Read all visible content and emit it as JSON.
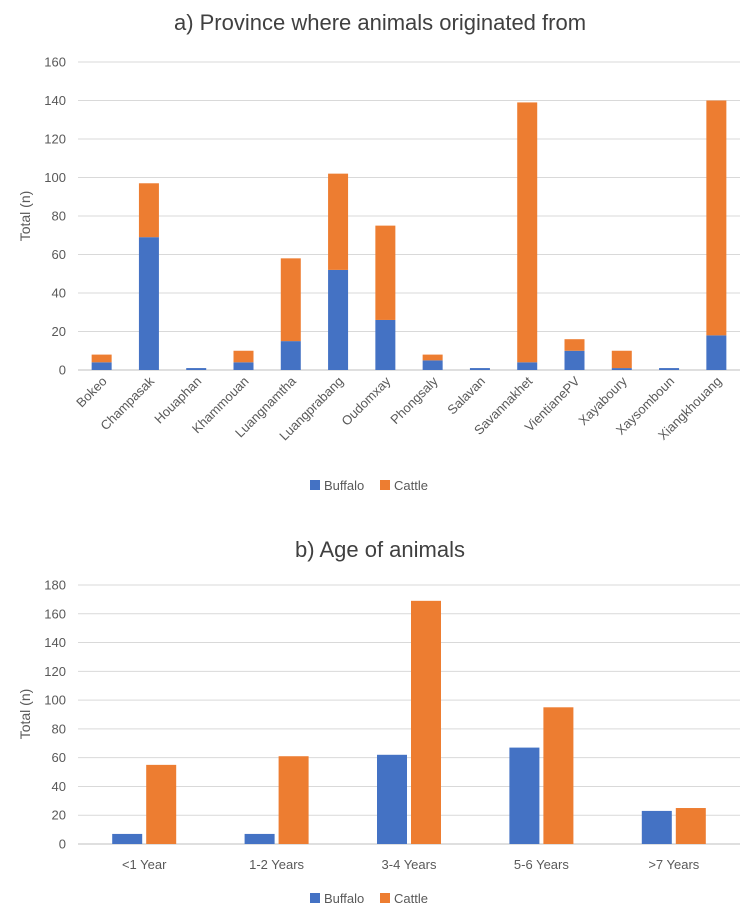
{
  "chart_data": [
    {
      "type": "bar",
      "stacked": true,
      "title": "a) Province where animals originated from",
      "ylabel": "Total (n)",
      "xlabel": "",
      "ylim": [
        0,
        160
      ],
      "yticks": [
        "0",
        "20",
        "40",
        "60",
        "80",
        "100",
        "120",
        "140",
        "160"
      ],
      "grid": true,
      "legend_position": "bottom",
      "categories": [
        "Bokeo",
        "Champasak",
        "Houaphan",
        "Khammouan",
        "Luangnamtha",
        "Luangprabang",
        "Oudomxay",
        "Phongsaly",
        "Salavan",
        "Savannakhet",
        "VientianePV",
        "Xayaboury",
        "Xaysomboun",
        "Xiangkhouang"
      ],
      "series": [
        {
          "name": "Buffalo",
          "color": "#4472c4",
          "values": [
            4,
            69,
            1,
            4,
            15,
            52,
            26,
            5,
            1,
            4,
            10,
            1,
            1,
            18
          ]
        },
        {
          "name": "Cattle",
          "color": "#ed7d31",
          "values": [
            4,
            28,
            0,
            6,
            43,
            50,
            49,
            3,
            0,
            135,
            6,
            9,
            0,
            122
          ]
        }
      ]
    },
    {
      "type": "bar",
      "stacked": false,
      "title": "b) Age of animals",
      "ylabel": "Total (n)",
      "xlabel": "",
      "ylim": [
        0,
        180
      ],
      "yticks": [
        "0",
        "20",
        "40",
        "60",
        "80",
        "100",
        "120",
        "140",
        "160",
        "180"
      ],
      "grid": true,
      "legend_position": "bottom",
      "categories": [
        "<1 Year",
        "1-2 Years",
        "3-4 Years",
        "5-6 Years",
        ">7 Years"
      ],
      "series": [
        {
          "name": "Buffalo",
          "color": "#4472c4",
          "values": [
            7,
            7,
            62,
            67,
            23
          ]
        },
        {
          "name": "Cattle",
          "color": "#ed7d31",
          "values": [
            55,
            61,
            169,
            95,
            25
          ]
        }
      ]
    }
  ]
}
